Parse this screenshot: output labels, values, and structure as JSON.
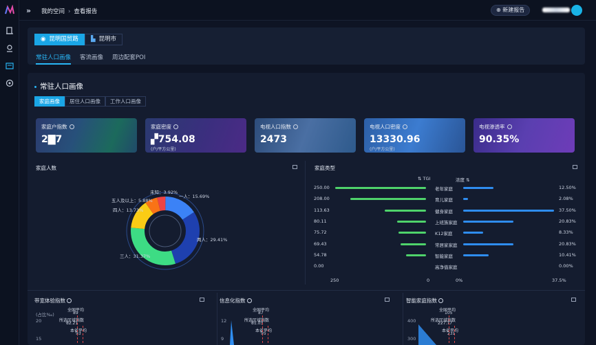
{
  "breadcrumb": {
    "space": "我的空间",
    "current": "查看报告"
  },
  "topbar": {
    "new_report": "⊕ 新建报告"
  },
  "location_tabs": [
    {
      "label": "昆明国贸路",
      "active": true
    },
    {
      "label": "昆明市",
      "active": false
    }
  ],
  "view_tabs": [
    {
      "label": "常驻人口画像",
      "active": true
    },
    {
      "label": "客流画像",
      "active": false
    },
    {
      "label": "周边配套POI",
      "active": false
    }
  ],
  "section": {
    "title": "常驻人口画像"
  },
  "sub_tabs": [
    {
      "label": "家庭画像",
      "active": true
    },
    {
      "label": "居住人口画像",
      "active": false
    },
    {
      "label": "工作人口画像",
      "active": false
    }
  ],
  "kpis": [
    {
      "label": "家庭户指数",
      "value": "2▇7",
      "unit": ""
    },
    {
      "label": "家庭密度",
      "value": "▞754.08",
      "unit": "(户/平方公里)"
    },
    {
      "label": "电视人口指数",
      "value": "2473",
      "unit": ""
    },
    {
      "label": "电视人口密度",
      "value": "13330.96",
      "unit": "(户/平方公里)"
    },
    {
      "label": "电视渗透率",
      "value": "90.35%",
      "unit": ""
    }
  ],
  "household_size": {
    "title": "家庭人数",
    "chart_data": {
      "type": "pie",
      "slices": [
        {
          "label": "一人：15.69%",
          "value": 15.69,
          "color": "#3b82f6"
        },
        {
          "label": "两人：29.41%",
          "value": 29.41,
          "color": "#1e40af"
        },
        {
          "label": "三人：31.37%",
          "value": 31.37,
          "color": "#3ddc84"
        },
        {
          "label": "四人：13.73%",
          "value": 13.73,
          "color": "#facc15"
        },
        {
          "label": "五人及以上：5.88%",
          "value": 5.88,
          "color": "#f97316"
        },
        {
          "label": "未知：3.92%",
          "value": 3.92,
          "color": "#ef4444"
        }
      ]
    }
  },
  "household_type": {
    "title": "家庭类型",
    "tgi_header": "TGI",
    "conc_header": "浓度",
    "chart_data": {
      "type": "bar",
      "categories": [
        "老年家庭",
        "育儿家庭",
        "健身家庭",
        "上班族家庭",
        "K12家庭",
        "常居家家庭",
        "智能家庭",
        "高净值家庭"
      ],
      "tgi": [
        250.0,
        208.0,
        113.63,
        80.11,
        75.72,
        69.43,
        54.78,
        0.0
      ],
      "tgi_labels": [
        "250.00",
        "208.00",
        "113.63",
        "80.11",
        "75.72",
        "69.43",
        "54.78",
        "0.00"
      ],
      "concentration": [
        12.5,
        2.08,
        37.5,
        20.83,
        8.33,
        20.83,
        10.41,
        0.0
      ],
      "concentration_labels": [
        "12.50%",
        "2.08%",
        "37.50%",
        "20.83%",
        "8.33%",
        "20.83%",
        "10.41%",
        "0.00%"
      ],
      "tgi_axis": [
        "250",
        "0"
      ],
      "conc_axis": [
        "0%",
        "37.5%"
      ]
    }
  },
  "bottom_panels": [
    {
      "title": "带宽体验指数",
      "unit": "(占比‰)",
      "y_top": "20",
      "y_low": "15",
      "avg_label": "全国平均",
      "avg_value": "89",
      "city_label": "所选区域指数",
      "city_value": "82.21",
      "local_label": "本省平均",
      "local_value": "93"
    },
    {
      "title": "信息化指数",
      "unit": "",
      "y_top": "12",
      "y_low": "9",
      "avg_label": "全国平均",
      "avg_value": "87",
      "city_label": "所选区域指数",
      "city_value": "81.03",
      "local_label": "本省平均",
      "local_value": "95"
    },
    {
      "title": "智能家庭指数",
      "unit": "",
      "y_top": "400",
      "y_low": "300",
      "avg_label": "全国平均",
      "avg_value": "105",
      "city_label": "所选区域指数",
      "city_value": "227.77",
      "local_label": "本省平均",
      "local_value": "231"
    }
  ]
}
